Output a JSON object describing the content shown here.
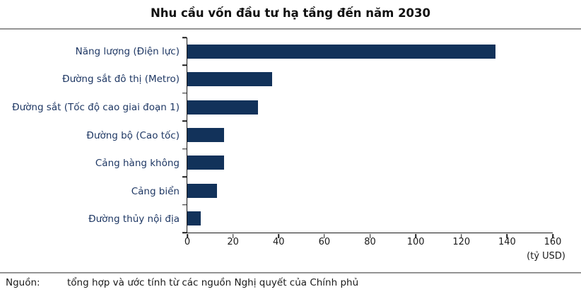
{
  "title": "Nhu cầu vốn đầu tư hạ tầng đến năm 2030",
  "chart_data": {
    "type": "bar",
    "orientation": "horizontal",
    "title": "Nhu cầu vốn đầu tư hạ tầng đến năm 2030",
    "categories": [
      "Năng lượng (Điện lực)",
      "Đường sắt đô thị (Metro)",
      "Đường sắt (Tốc độ cao giai đoạn 1)",
      "Đường bộ (Cao tốc)",
      "Cảng hàng không",
      "Cảng biển",
      "Đường thủy nội địa"
    ],
    "values": [
      135,
      37,
      31,
      16,
      16,
      13,
      6
    ],
    "xlim": [
      0,
      160
    ],
    "xticks": [
      0,
      20,
      40,
      60,
      80,
      100,
      120,
      140,
      160
    ],
    "unit_label": "(tỷ USD)",
    "grid": false,
    "legend": false,
    "bar_color": "#12325a",
    "label_color": "#1f3864",
    "axis_color": "#1a1a1a"
  },
  "source": {
    "prefix": "Nguồn:",
    "text": "tổng hợp và ước tính từ các nguồn Nghị quyết của Chính phủ"
  }
}
